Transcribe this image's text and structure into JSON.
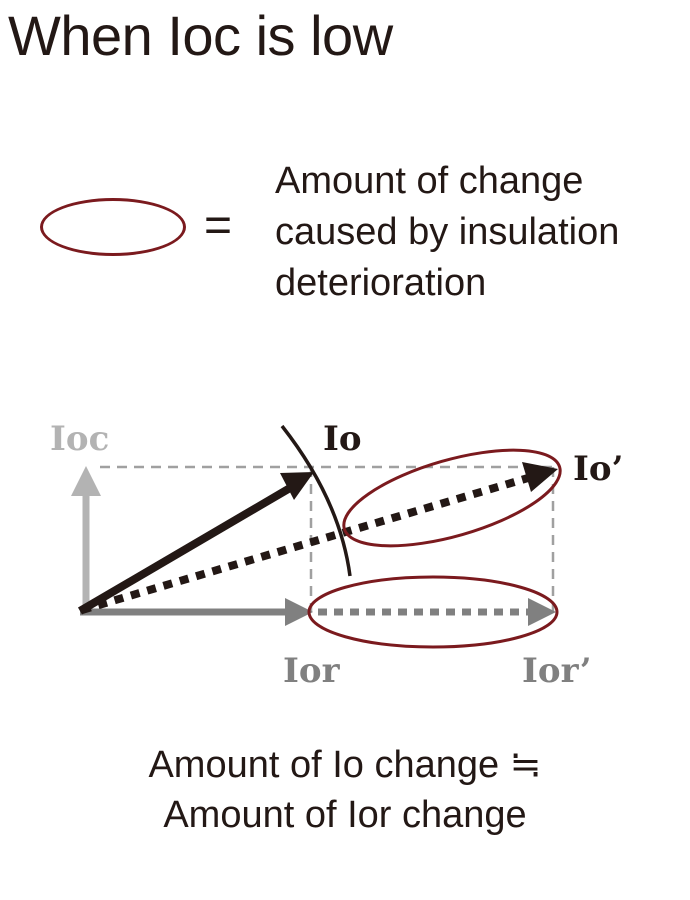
{
  "title": "When Ioc is low",
  "legend": {
    "symbol": "=",
    "text_lines": [
      "Amount of change",
      "caused by insulation",
      "deterioration"
    ]
  },
  "vector_labels": {
    "ioc": "Ioc",
    "io": "Io",
    "io_prime": "Io’",
    "ior": "Ior",
    "ior_prime": "Ior’"
  },
  "conclusion_lines": [
    "Amount of Io change ≒",
    "Amount of Ior change"
  ],
  "colors": {
    "text": "#231815",
    "oval": "#7b1a1e",
    "ioc_vector": "#b3b3b3",
    "ior_vector": "#808080",
    "io_vector": "#231815",
    "guide_lines": "#a0a0a0"
  }
}
